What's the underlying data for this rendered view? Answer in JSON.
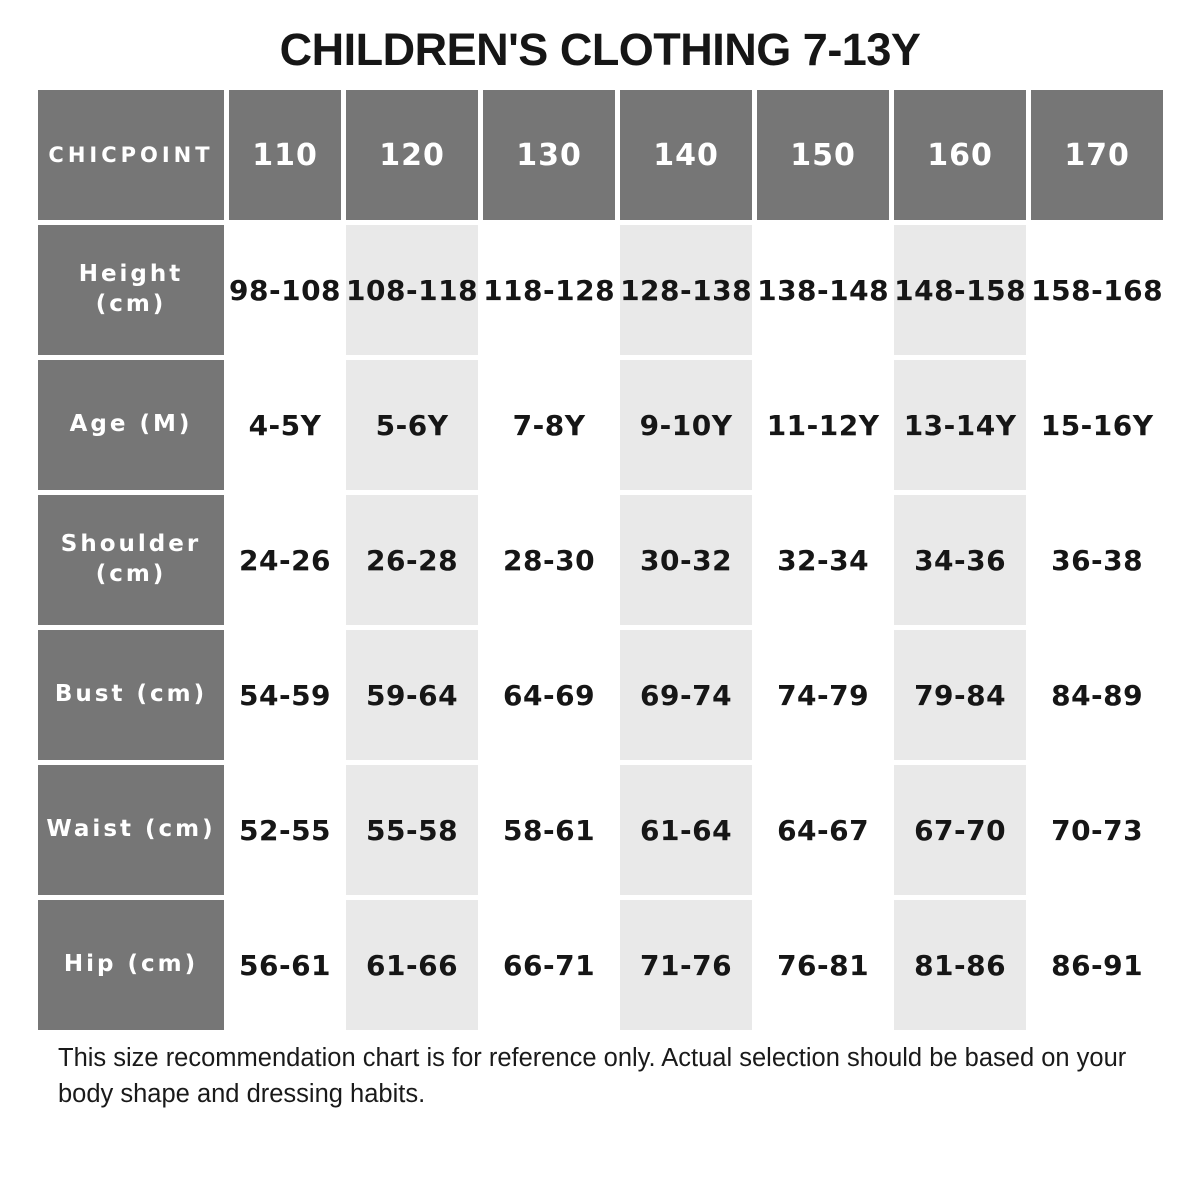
{
  "chart_data": {
    "type": "table",
    "title": "CHILDREN'S CLOTHING 7-13Y",
    "corner_label": "CHICPOINT",
    "size_columns": [
      "110",
      "120",
      "130",
      "140",
      "150",
      "160",
      "170"
    ],
    "rows": [
      {
        "label": "Height (cm)",
        "values": [
          "98-108",
          "108-118",
          "118-128",
          "128-138",
          "138-148",
          "148-158",
          "158-168"
        ]
      },
      {
        "label": "Age (M)",
        "values": [
          "4-5Y",
          "5-6Y",
          "7-8Y",
          "9-10Y",
          "11-12Y",
          "13-14Y",
          "15-16Y"
        ]
      },
      {
        "label": "Shoulder (cm)",
        "values": [
          "24-26",
          "26-28",
          "28-30",
          "30-32",
          "32-34",
          "34-36",
          "36-38"
        ]
      },
      {
        "label": "Bust (cm)",
        "values": [
          "54-59",
          "59-64",
          "64-69",
          "69-74",
          "74-79",
          "79-84",
          "84-89"
        ]
      },
      {
        "label": "Waist (cm)",
        "values": [
          "52-55",
          "55-58",
          "58-61",
          "61-64",
          "64-67",
          "67-70",
          "70-73"
        ]
      },
      {
        "label": "Hip (cm)",
        "values": [
          "56-61",
          "61-66",
          "66-71",
          "71-76",
          "76-81",
          "81-86",
          "86-91"
        ]
      }
    ],
    "note": "This size recommendation chart is for reference only. Actual selection should be based on your body shape and dressing habits.",
    "legend_position": "none",
    "grid": "off"
  },
  "colors": {
    "header_bg": "#767676",
    "header_text": "#ffffff",
    "stripe_bg": "#e9e9e9",
    "text_dark": "#161616"
  }
}
